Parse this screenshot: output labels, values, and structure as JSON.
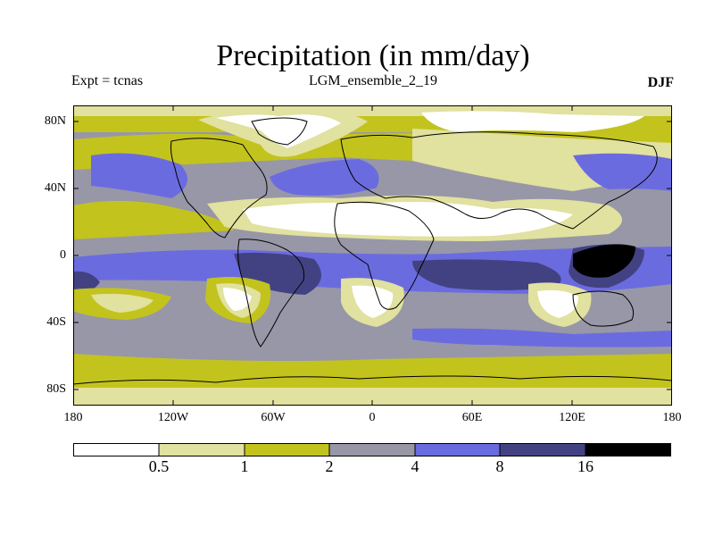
{
  "title": "Precipitation (in mm/day)",
  "experiment": "Expt = tcnas",
  "ensemble": "LGM_ensemble_2_19",
  "season": "DJF",
  "lat_labels": [
    "80N",
    "40N",
    "0",
    "40S",
    "80S"
  ],
  "lon_labels": [
    "180",
    "120W",
    "60W",
    "0",
    "60E",
    "120E",
    "180"
  ],
  "colorbar": {
    "thresholds": [
      "0.5",
      "1",
      "2",
      "4",
      "8",
      "16"
    ],
    "colors": [
      "#ffffff",
      "#e1e1a0",
      "#c3c31e",
      "#9797a8",
      "#6b6be0",
      "#424283",
      "#000000"
    ]
  },
  "colors": {
    "land_outline": "#000000",
    "frame": "#000000"
  }
}
